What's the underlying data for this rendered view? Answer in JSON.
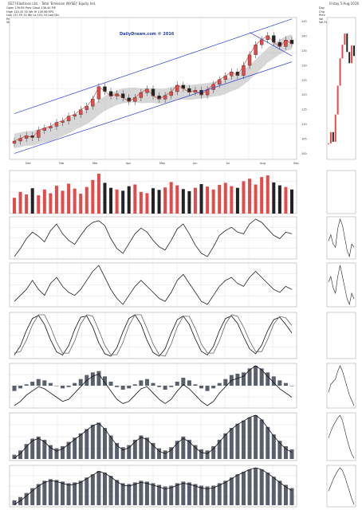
{
  "header": {
    "symbol_line": "[ELT] Elasticon Ltd. - Total 'Emission (NYSE)' Equity Ind.",
    "date_label": "Friday 5-Aug-2016",
    "watermark": "DailyDrawn.com © 2016"
  },
  "stats_left": [
    "Open  139.85   Prev Close  138.40   P/E",
    "High  140.20   52 Wk Hi    140.68   EPS",
    "Low   137.55   52 Wk Lo    101.34   Last Div",
    "Prev Close 138.40  Bid Size 5       Last Close",
    "Volume     7,117,913   VWAP  138.62   Yield"
  ],
  "stats_right": [
    "Day  ",
    "Chg  ",
    "Prev ",
    "Vol  ",
    "Vol-Fw"
  ],
  "colors": {
    "up": "#e34b4b",
    "down": "#222222",
    "band_fill": "#bdbdbd",
    "trendline": "#2b3fd6",
    "grid": "#d8d8d8"
  },
  "chart_data": [
    {
      "type": "candlestick",
      "panel": "price",
      "x_ticks": [
        "Dec",
        "Feb",
        "Mar",
        "Apr",
        "May",
        "Jun",
        "Jul",
        "Aug",
        "Sep"
      ],
      "y_ticks": [
        "145",
        "140",
        "135",
        "130",
        "125",
        "120",
        "115",
        "110",
        "105",
        "100"
      ],
      "ylim": [
        98,
        146
      ],
      "close": [
        104.2,
        105.1,
        106.0,
        105.4,
        107.8,
        108.6,
        109.2,
        110.5,
        111.0,
        112.6,
        113.2,
        114.8,
        116.0,
        118.4,
        122.6,
        121.0,
        119.4,
        120.2,
        118.8,
        117.6,
        118.9,
        120.6,
        121.8,
        119.5,
        118.4,
        119.6,
        120.9,
        123.1,
        122.0,
        120.7,
        121.4,
        119.8,
        121.6,
        123.4,
        125.0,
        126.2,
        127.6,
        126.4,
        129.8,
        133.4,
        136.8,
        138.5,
        139.9,
        137.6,
        136.2,
        138.4,
        137.1
      ],
      "trend_lines": [
        {
          "from": [
            0,
            100.0
          ],
          "to": [
            46,
            131.0
          ]
        },
        {
          "from": [
            0,
            113.5
          ],
          "to": [
            46,
            145.5
          ]
        },
        {
          "from": [
            39,
            141.0
          ],
          "to": [
            46,
            133.0
          ]
        }
      ]
    },
    {
      "type": "bar",
      "panel": "volume",
      "values": [
        38,
        52,
        46,
        61,
        44,
        58,
        49,
        67,
        55,
        72,
        60,
        48,
        64,
        81,
        96,
        74,
        62,
        58,
        55,
        66,
        70,
        52,
        49,
        61,
        57,
        63,
        76,
        68,
        59,
        54,
        62,
        71,
        65,
        58,
        69,
        74,
        66,
        62,
        78,
        84,
        70,
        88,
        92,
        75,
        68,
        64,
        58
      ]
    },
    {
      "type": "line",
      "panel": "oscillator-1",
      "values": [
        30,
        40,
        52,
        60,
        55,
        48,
        62,
        70,
        58,
        50,
        45,
        56,
        66,
        72,
        74,
        68,
        52,
        40,
        34,
        46,
        58,
        65,
        60,
        50,
        42,
        38,
        50,
        64,
        70,
        58,
        44,
        34,
        30,
        42,
        56,
        62,
        66,
        60,
        58,
        70,
        76,
        72,
        64,
        56,
        52,
        60,
        58
      ]
    },
    {
      "type": "line",
      "panel": "oscillator-2",
      "values": [
        48,
        50,
        52,
        55,
        52,
        50,
        54,
        56,
        53,
        51,
        50,
        52,
        55,
        58,
        60,
        56,
        52,
        49,
        47,
        50,
        53,
        55,
        53,
        51,
        49,
        48,
        51,
        55,
        57,
        54,
        51,
        48,
        47,
        50,
        53,
        55,
        56,
        54,
        53,
        56,
        58,
        56,
        54,
        52,
        51,
        53,
        52
      ]
    },
    {
      "type": "line",
      "panel": "stochastic",
      "series": [
        {
          "values": [
            20,
            35,
            60,
            80,
            85,
            70,
            45,
            25,
            20,
            35,
            62,
            82,
            84,
            66,
            40,
            22,
            18,
            32,
            58,
            80,
            86,
            70,
            44,
            24,
            18,
            30,
            56,
            78,
            84,
            70,
            46,
            26,
            20,
            34,
            60,
            80,
            84,
            72,
            50,
            30,
            22,
            36,
            60,
            78,
            82,
            70,
            56
          ]
        },
        {
          "values": [
            28,
            30,
            45,
            65,
            78,
            78,
            62,
            42,
            28,
            28,
            44,
            66,
            78,
            76,
            58,
            38,
            26,
            26,
            42,
            64,
            78,
            78,
            60,
            40,
            26,
            24,
            40,
            62,
            76,
            76,
            60,
            40,
            28,
            28,
            44,
            66,
            78,
            76,
            62,
            44,
            30,
            30,
            46,
            66,
            76,
            74,
            64
          ]
        }
      ]
    },
    {
      "type": "bar",
      "panel": "macd-1",
      "values": [
        -0.4,
        -0.2,
        0.1,
        0.3,
        0.5,
        0.4,
        0.2,
        0.0,
        -0.2,
        -0.1,
        0.2,
        0.5,
        0.8,
        1.0,
        1.1,
        0.7,
        0.3,
        -0.1,
        -0.3,
        -0.2,
        0.1,
        0.4,
        0.5,
        0.2,
        -0.1,
        -0.3,
        -0.1,
        0.3,
        0.6,
        0.4,
        0.1,
        -0.2,
        -0.4,
        -0.2,
        0.2,
        0.5,
        0.8,
        0.9,
        1.0,
        1.3,
        1.5,
        1.3,
        1.0,
        0.7,
        0.4,
        0.2,
        0.0
      ]
    },
    {
      "type": "bar",
      "panel": "macd-2",
      "values": [
        0.4,
        0.8,
        1.4,
        1.9,
        2.1,
        1.8,
        1.3,
        1.0,
        1.2,
        1.6,
        2.0,
        2.4,
        2.8,
        3.2,
        3.4,
        2.9,
        2.2,
        1.5,
        1.1,
        1.3,
        1.8,
        2.2,
        2.0,
        1.5,
        1.0,
        0.8,
        1.1,
        1.7,
        2.1,
        1.8,
        1.3,
        0.9,
        0.8,
        1.2,
        1.8,
        2.4,
        2.9,
        3.3,
        3.6,
        3.9,
        4.1,
        3.7,
        3.0,
        2.3,
        1.7,
        1.2,
        0.9
      ]
    },
    {
      "type": "bar",
      "panel": "macd-3",
      "values": [
        0.6,
        1.0,
        1.5,
        2.1,
        2.6,
        3.0,
        3.2,
        3.1,
        2.9,
        2.7,
        2.8,
        3.0,
        3.4,
        3.8,
        4.2,
        4.0,
        3.6,
        3.1,
        2.7,
        2.6,
        2.8,
        3.0,
        2.9,
        2.7,
        2.5,
        2.3,
        2.4,
        2.7,
        2.9,
        2.8,
        2.6,
        2.4,
        2.3,
        2.4,
        2.7,
        3.0,
        3.4,
        3.8,
        4.1,
        4.4,
        4.6,
        4.4,
        4.0,
        3.5,
        3.0,
        2.5,
        2.1
      ]
    }
  ]
}
